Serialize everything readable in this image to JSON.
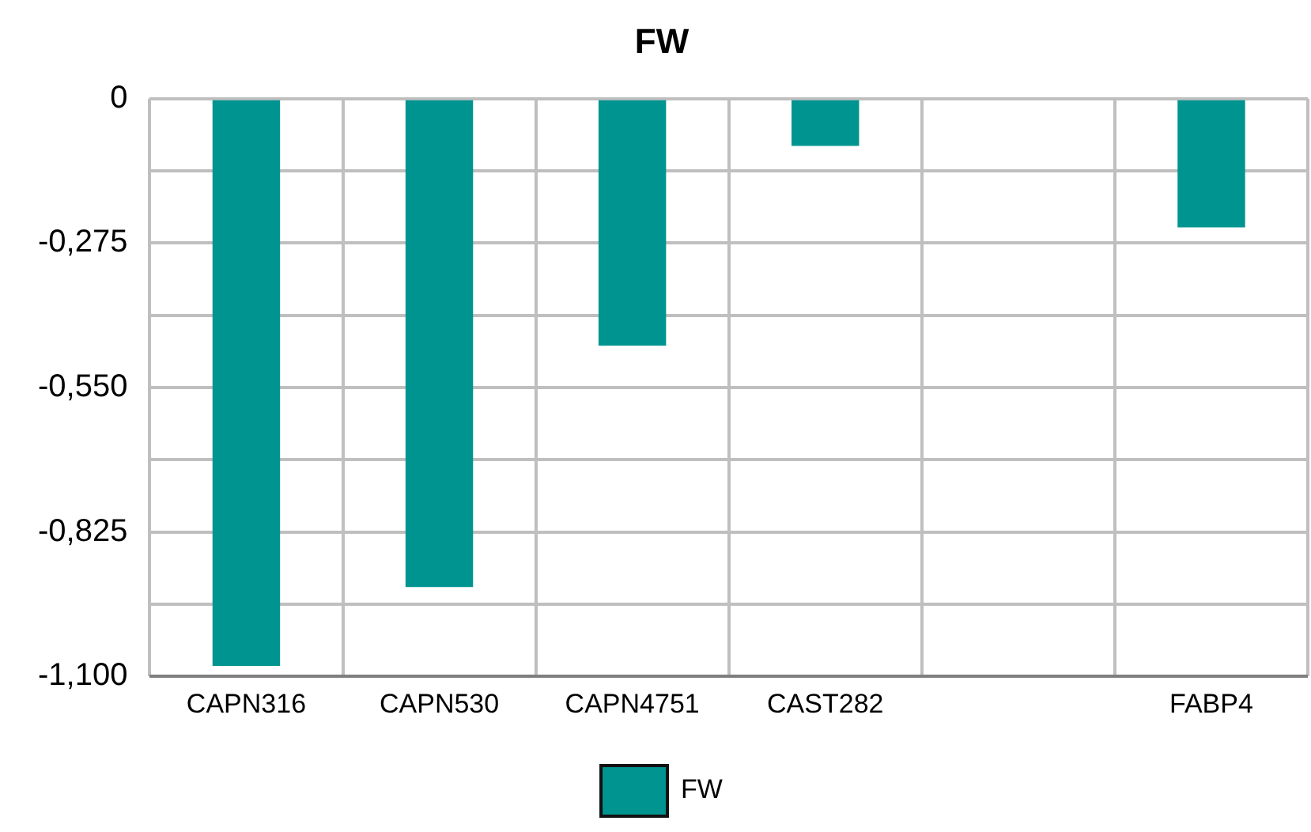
{
  "chart_data": {
    "type": "bar",
    "title": "FW",
    "categories": [
      "CAPN316",
      "CAPN530",
      "CAPN4751",
      "CAST282",
      null,
      "FABP4"
    ],
    "series": [
      {
        "name": "FW",
        "color": "#009490",
        "values": [
          -1.08,
          -0.93,
          -0.47,
          -0.09,
          null,
          -0.245
        ]
      }
    ],
    "ylim": [
      -1.1,
      0
    ],
    "yticks": [
      {
        "value": -1.1,
        "label": "-1,100"
      },
      {
        "value": -0.9625,
        "label": null
      },
      {
        "value": -0.825,
        "label": "-0,825"
      },
      {
        "value": -0.6875,
        "label": null
      },
      {
        "value": -0.55,
        "label": "-0,550"
      },
      {
        "value": -0.4125,
        "label": null
      },
      {
        "value": -0.275,
        "label": "-0,275"
      },
      {
        "value": -0.1375,
        "label": null
      },
      {
        "value": 0,
        "label": "0"
      }
    ],
    "grid": true,
    "legend": "bottom"
  }
}
